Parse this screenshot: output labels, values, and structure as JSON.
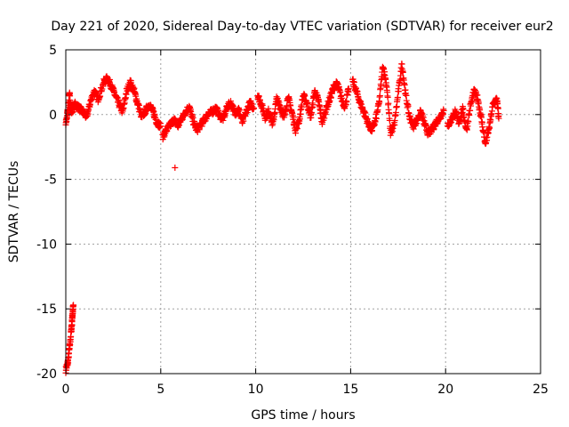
{
  "chart_data": {
    "type": "scatter",
    "title": "Day 221 of 2020, Sidereal Day-to-day VTEC variation (SDTVAR) for receiver eur2",
    "xlabel": "GPS time / hours",
    "ylabel": "SDTVAR / TECUs",
    "xlim": [
      0,
      25
    ],
    "ylim": [
      -20,
      5
    ],
    "xticks": [
      0,
      5,
      10,
      15,
      20,
      25
    ],
    "yticks": [
      -20,
      -15,
      -10,
      -5,
      0,
      5
    ],
    "grid": true,
    "marker": "plus",
    "color": "#ff0000",
    "series": [
      {
        "name": "SDTVAR",
        "segments": [
          {
            "x": [
              0.0,
              0.1,
              0.2,
              0.3,
              0.35,
              0.4
            ],
            "y": [
              -19.7,
              -19.2,
              -18.0,
              -16.5,
              -15.5,
              -14.7
            ]
          },
          {
            "x": [
              0.0,
              0.1,
              0.2,
              0.3,
              0.5,
              0.7,
              0.9,
              1.1,
              1.3,
              1.5,
              1.7,
              2.0,
              2.2,
              2.4,
              2.6,
              2.8,
              3.0,
              3.2,
              3.4,
              3.6,
              3.8,
              4.0,
              4.2,
              4.4,
              4.6,
              4.8,
              5.0
            ],
            "y": [
              -0.8,
              0.3,
              1.5,
              0.2,
              0.8,
              0.5,
              0.2,
              -0.2,
              1.0,
              1.8,
              1.2,
              2.5,
              2.8,
              2.2,
              1.5,
              0.8,
              0.2,
              1.8,
              2.5,
              1.8,
              0.8,
              -0.2,
              0.3,
              0.8,
              0.2,
              -0.6,
              -0.9
            ]
          },
          {
            "x": [
              5.1,
              5.3,
              5.5,
              5.7,
              5.9,
              6.1,
              6.3,
              6.5,
              6.7,
              6.9,
              7.1,
              7.3,
              7.5,
              7.7,
              7.9,
              8.1,
              8.3,
              8.5,
              8.7,
              8.9,
              9.1,
              9.3,
              9.5,
              9.7,
              9.9
            ],
            "y": [
              -1.7,
              -1.2,
              -0.8,
              -0.4,
              -0.9,
              -0.3,
              0.2,
              0.6,
              -0.5,
              -1.2,
              -0.8,
              -0.4,
              0.1,
              0.2,
              0.5,
              -0.1,
              -0.3,
              0.6,
              0.9,
              0.1,
              0.4,
              -0.6,
              0.2,
              0.9,
              0.5
            ]
          },
          {
            "x": [
              10.1,
              10.3,
              10.5,
              10.7,
              10.9,
              11.1,
              11.3,
              11.5,
              11.7,
              11.9,
              12.1,
              12.3,
              12.5,
              12.7,
              12.9,
              13.1,
              13.3,
              13.5,
              13.7,
              13.9,
              14.1,
              14.3,
              14.5,
              14.7,
              14.9
            ],
            "y": [
              1.5,
              0.8,
              -0.2,
              0.3,
              -0.8,
              1.2,
              0.6,
              -0.3,
              1.4,
              0.2,
              -1.2,
              -0.4,
              1.5,
              0.9,
              -0.2,
              1.8,
              1.1,
              -0.6,
              0.4,
              1.2,
              2.1,
              2.4,
              1.3,
              0.6,
              2.0
            ]
          },
          {
            "x": [
              15.1,
              15.3,
              15.5,
              15.7,
              15.9,
              16.1,
              16.3,
              16.5,
              16.7,
              16.9,
              17.1,
              17.3,
              17.5,
              17.7,
              17.9,
              18.1,
              18.3,
              18.5,
              18.7,
              18.9,
              19.1,
              19.3,
              19.5,
              19.7,
              19.9
            ],
            "y": [
              2.6,
              1.8,
              0.9,
              0.2,
              -0.6,
              -1.2,
              -0.5,
              0.9,
              3.8,
              2.2,
              -1.4,
              -0.8,
              1.6,
              3.9,
              1.5,
              -0.2,
              -0.9,
              -0.4,
              0.2,
              -0.8,
              -1.5,
              -1.1,
              -0.6,
              -0.2,
              0.3
            ]
          },
          {
            "x": [
              20.1,
              20.3,
              20.5,
              20.7,
              20.9,
              21.1,
              21.3,
              21.5,
              21.7,
              21.9,
              22.1,
              22.3,
              22.5,
              22.7,
              22.8
            ],
            "y": [
              -0.9,
              -0.4,
              0.2,
              -0.6,
              0.4,
              -1.2,
              0.6,
              1.8,
              1.2,
              -0.5,
              -2.3,
              -1.0,
              0.8,
              1.2,
              -0.3
            ]
          },
          {
            "x": [
              5.75
            ],
            "y": [
              -4.1
            ]
          }
        ]
      }
    ]
  }
}
